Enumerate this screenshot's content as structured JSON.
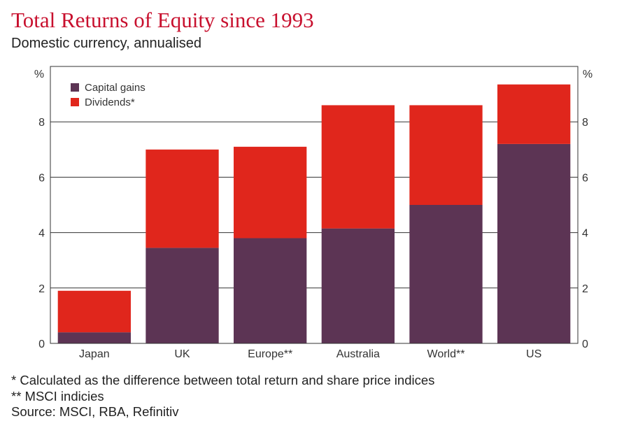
{
  "chart_data": {
    "type": "bar",
    "stacked": true,
    "title": "Total Returns of Equity since 1993",
    "subtitle": "Domestic currency, annualised",
    "ylabel": "%",
    "ylabel_right": "%",
    "ylim": [
      0,
      10
    ],
    "yticks": [
      0,
      2,
      4,
      6,
      8
    ],
    "categories": [
      "Japan",
      "UK",
      "Europe**",
      "Australia",
      "World**",
      "US"
    ],
    "series": [
      {
        "name": "Capital gains",
        "color": "#5c3454",
        "values": [
          0.4,
          3.45,
          3.8,
          4.15,
          5.0,
          7.2
        ]
      },
      {
        "name": "Dividends*",
        "color": "#e0261c",
        "values": [
          1.5,
          3.55,
          3.3,
          4.45,
          3.6,
          2.15
        ]
      }
    ],
    "legend_position": "top-left",
    "grid": true
  },
  "notes": [
    "* Calculated as the difference between total return and share price indices",
    "** MSCI indicies",
    "Source: MSCI, RBA, Refinitiv"
  ]
}
